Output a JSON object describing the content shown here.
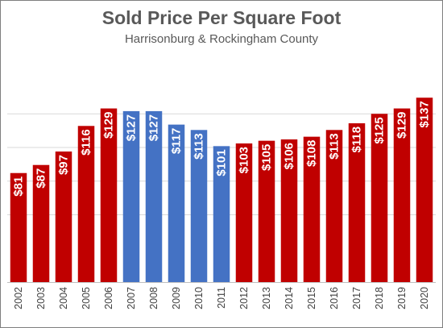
{
  "chart_data": {
    "type": "bar",
    "title": "Sold Price Per Square Foot",
    "subtitle": "Harrisonburg & Rockingham County",
    "xlabel": "",
    "ylabel": "",
    "categories": [
      "2002",
      "2003",
      "2004",
      "2005",
      "2006",
      "2007",
      "2008",
      "2009",
      "2010",
      "2011",
      "2012",
      "2013",
      "2014",
      "2015",
      "2016",
      "2017",
      "2018",
      "2019",
      "2020"
    ],
    "values": [
      81,
      87,
      97,
      116,
      129,
      127,
      127,
      117,
      113,
      101,
      103,
      105,
      106,
      108,
      113,
      118,
      125,
      129,
      137
    ],
    "value_labels": [
      "$81",
      "$87",
      "$97",
      "$116",
      "$129",
      "$127",
      "$127",
      "$117",
      "$113",
      "$101",
      "$103",
      "$105",
      "$106",
      "$108",
      "$113",
      "$118",
      "$125",
      "$129",
      "$137"
    ],
    "bar_colors": [
      "#c00000",
      "#c00000",
      "#c00000",
      "#c00000",
      "#c00000",
      "#4472c4",
      "#4472c4",
      "#4472c4",
      "#4472c4",
      "#4472c4",
      "#c00000",
      "#c00000",
      "#c00000",
      "#c00000",
      "#c00000",
      "#c00000",
      "#c00000",
      "#c00000",
      "#c00000"
    ],
    "ylim": [
      0,
      150
    ],
    "gridline_values": [
      50,
      75,
      100,
      125
    ],
    "grid": true,
    "legend": "none",
    "tick_label_orientation": "vertical"
  }
}
